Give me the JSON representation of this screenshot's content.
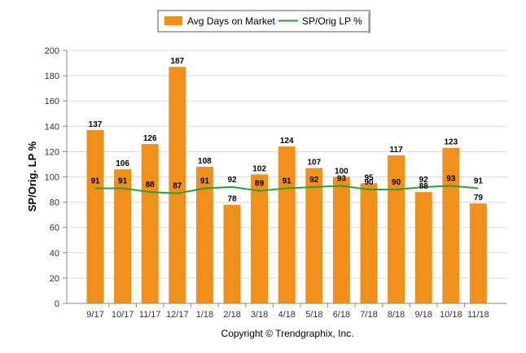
{
  "chart_data": {
    "type": "bar",
    "title": "",
    "xlabel": "",
    "ylabel": "SP/Orig. LP %",
    "ylim": [
      0,
      200
    ],
    "yticks": [
      0,
      20,
      40,
      60,
      80,
      100,
      120,
      140,
      160,
      180,
      200
    ],
    "grid": true,
    "legend_position": "top-center",
    "categories": [
      "9/17",
      "10/17",
      "11/17",
      "12/17",
      "1/18",
      "2/18",
      "3/18",
      "4/18",
      "5/18",
      "6/18",
      "7/18",
      "8/18",
      "9/18",
      "10/18",
      "11/18"
    ],
    "series": [
      {
        "name": "Avg Days on Market",
        "type": "bar",
        "color": "#f0901a",
        "values": [
          137,
          106,
          126,
          187,
          108,
          78,
          102,
          124,
          107,
          100,
          95,
          117,
          88,
          123,
          79
        ]
      },
      {
        "name": "SP/Orig LP %",
        "type": "line",
        "color": "#2ca02c",
        "values": [
          91,
          91,
          88,
          87,
          91,
          92,
          89,
          91,
          92,
          93,
          90,
          90,
          92,
          93,
          91
        ]
      }
    ],
    "credit": "Copyright © Trendgraphix, Inc."
  }
}
